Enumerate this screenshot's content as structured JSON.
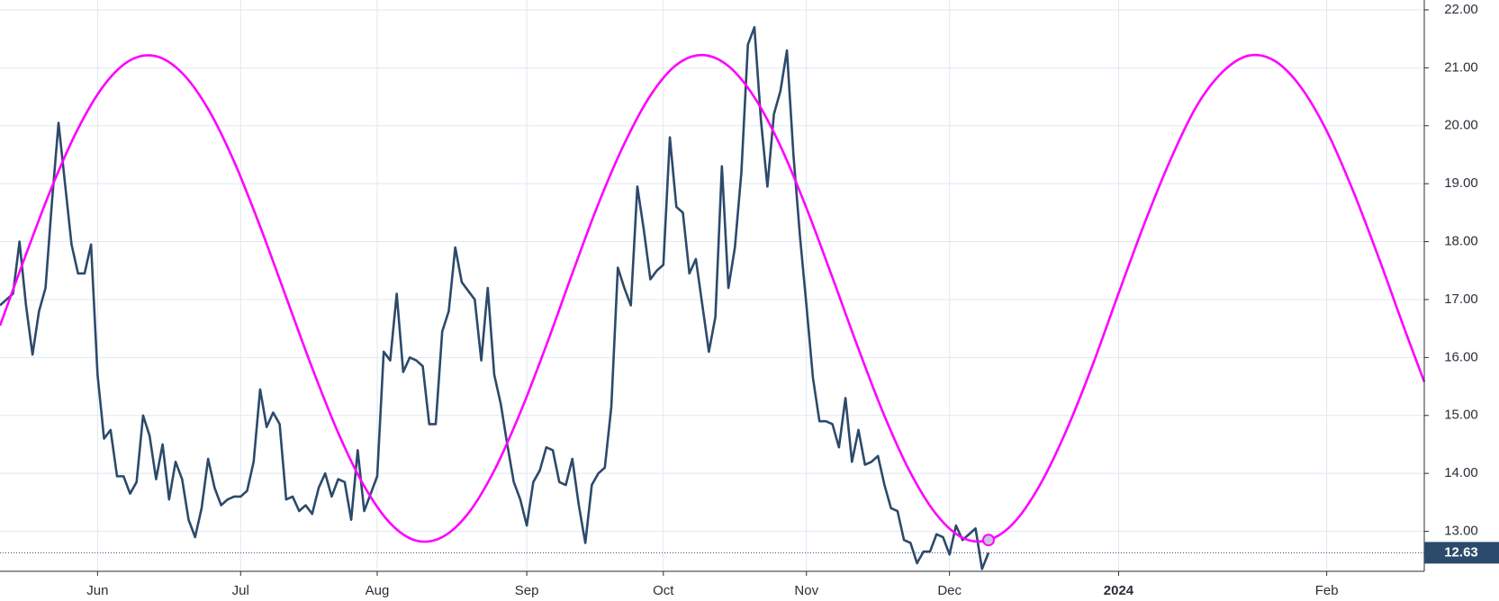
{
  "chart_data": {
    "type": "line",
    "xlim": [
      0,
      219
    ],
    "ylim": [
      12.31,
      22.17
    ],
    "xticks": [
      {
        "value": 15,
        "label": "Jun"
      },
      {
        "value": 37,
        "label": "Jul"
      },
      {
        "value": 58,
        "label": "Aug"
      },
      {
        "value": 81,
        "label": "Sep"
      },
      {
        "value": 102,
        "label": "Oct"
      },
      {
        "value": 124,
        "label": "Nov"
      },
      {
        "value": 146,
        "label": "Dec"
      },
      {
        "value": 172,
        "label": "2024"
      },
      {
        "value": 204,
        "label": "Feb"
      }
    ],
    "yticks": [
      {
        "value": 13,
        "label": "13.00"
      },
      {
        "value": 14,
        "label": "14.00"
      },
      {
        "value": 15,
        "label": "15.00"
      },
      {
        "value": 16,
        "label": "16.00"
      },
      {
        "value": 17,
        "label": "17.00"
      },
      {
        "value": 18,
        "label": "18.00"
      },
      {
        "value": 19,
        "label": "19.00"
      },
      {
        "value": 20,
        "label": "20.00"
      },
      {
        "value": 21,
        "label": "21.00"
      },
      {
        "value": 22,
        "label": "22.00"
      }
    ],
    "grid": true,
    "series": [
      {
        "color": "#2c4a6b",
        "x": [
          0,
          1,
          2,
          3,
          4,
          5,
          6,
          7,
          8,
          9,
          10,
          11,
          12,
          13,
          14,
          15,
          16,
          17,
          18,
          19,
          20,
          21,
          22,
          23,
          24,
          25,
          26,
          27,
          28,
          29,
          30,
          31,
          32,
          33,
          34,
          35,
          36,
          37,
          38,
          39,
          40,
          41,
          42,
          43,
          44,
          45,
          46,
          47,
          48,
          49,
          50,
          51,
          52,
          53,
          54,
          55,
          56,
          57,
          58,
          59,
          60,
          61,
          62,
          63,
          64,
          65,
          66,
          67,
          68,
          69,
          70,
          71,
          72,
          73,
          74,
          75,
          76,
          77,
          78,
          79,
          80,
          81,
          82,
          83,
          84,
          85,
          86,
          87,
          88,
          89,
          90,
          91,
          92,
          93,
          94,
          95,
          96,
          97,
          98,
          99,
          100,
          101,
          102,
          103,
          104,
          105,
          106,
          107,
          108,
          109,
          110,
          111,
          112,
          113,
          114,
          115,
          116,
          117,
          118,
          119,
          120,
          121,
          122,
          123,
          124,
          125,
          126,
          127,
          128,
          129,
          130,
          131,
          132,
          133,
          134,
          135,
          136,
          137,
          138,
          139,
          140,
          141,
          142,
          143,
          144,
          145,
          146,
          147,
          148,
          149,
          150,
          151,
          152
        ],
        "values": [
          16.9,
          17.0,
          17.1,
          18.0,
          16.9,
          16.05,
          16.8,
          17.2,
          18.7,
          20.05,
          19.0,
          17.95,
          17.45,
          17.45,
          17.95,
          15.7,
          14.6,
          14.75,
          13.95,
          13.95,
          13.65,
          13.85,
          15.0,
          14.65,
          13.9,
          14.5,
          13.55,
          14.2,
          13.9,
          13.2,
          12.9,
          13.4,
          14.25,
          13.75,
          13.45,
          13.55,
          13.6,
          13.6,
          13.7,
          14.2,
          15.45,
          14.8,
          15.05,
          14.85,
          13.55,
          13.6,
          13.35,
          13.45,
          13.3,
          13.75,
          14.0,
          13.6,
          13.9,
          13.85,
          13.2,
          14.4,
          13.35,
          13.65,
          13.95,
          16.1,
          15.95,
          17.1,
          15.75,
          16.0,
          15.95,
          15.85,
          14.85,
          14.85,
          16.45,
          16.8,
          17.9,
          17.3,
          17.15,
          17.0,
          15.95,
          17.2,
          15.7,
          15.2,
          14.5,
          13.85,
          13.55,
          13.1,
          13.85,
          14.05,
          14.45,
          14.4,
          13.85,
          13.8,
          14.25,
          13.45,
          12.8,
          13.8,
          14.0,
          14.1,
          15.15,
          17.55,
          17.2,
          16.9,
          18.95,
          18.2,
          17.35,
          17.5,
          17.6,
          19.8,
          18.6,
          18.5,
          17.45,
          17.7,
          16.9,
          16.1,
          16.7,
          19.3,
          17.2,
          17.9,
          19.2,
          21.4,
          21.7,
          20.1,
          18.95,
          20.2,
          20.6,
          21.3,
          19.5,
          18.1,
          16.9,
          15.65,
          14.9,
          14.9,
          14.85,
          14.45,
          15.3,
          14.2,
          14.75,
          14.15,
          14.2,
          14.3,
          13.8,
          13.4,
          13.35,
          12.85,
          12.8,
          12.45,
          12.65,
          12.65,
          12.95,
          12.9,
          12.6,
          13.1,
          12.85,
          12.95,
          13.05,
          12.35,
          12.63
        ]
      },
      {
        "color": "#ff00ff",
        "x": [
          0,
          4,
          8,
          12,
          16,
          20,
          24,
          28,
          32,
          36,
          40,
          44,
          48,
          52,
          56,
          60,
          64,
          68,
          72,
          76,
          80,
          84,
          88,
          92,
          96,
          100,
          104,
          108,
          112,
          116,
          120,
          124,
          128,
          132,
          136,
          140,
          144,
          148,
          152,
          156,
          160,
          164,
          168,
          172,
          176,
          180,
          184,
          188,
          192,
          196,
          200,
          204,
          208,
          212,
          216,
          219
        ],
        "values": [
          16.55,
          17.78,
          18.95,
          19.95,
          20.7,
          21.13,
          21.2,
          20.91,
          20.29,
          19.38,
          18.26,
          17.04,
          15.82,
          14.7,
          13.78,
          13.14,
          12.84,
          12.9,
          13.31,
          14.05,
          15.05,
          16.21,
          17.45,
          18.65,
          19.69,
          20.52,
          21.05,
          21.22,
          21.03,
          20.49,
          19.65,
          18.58,
          17.38,
          16.15,
          14.99,
          14.01,
          13.29,
          12.89,
          12.85,
          13.16,
          13.82,
          14.75,
          15.87,
          17.11,
          18.32,
          19.42,
          20.34,
          20.93,
          21.21,
          21.12,
          20.67,
          19.91,
          18.89,
          17.72,
          16.48,
          15.58
        ]
      }
    ]
  }
}
